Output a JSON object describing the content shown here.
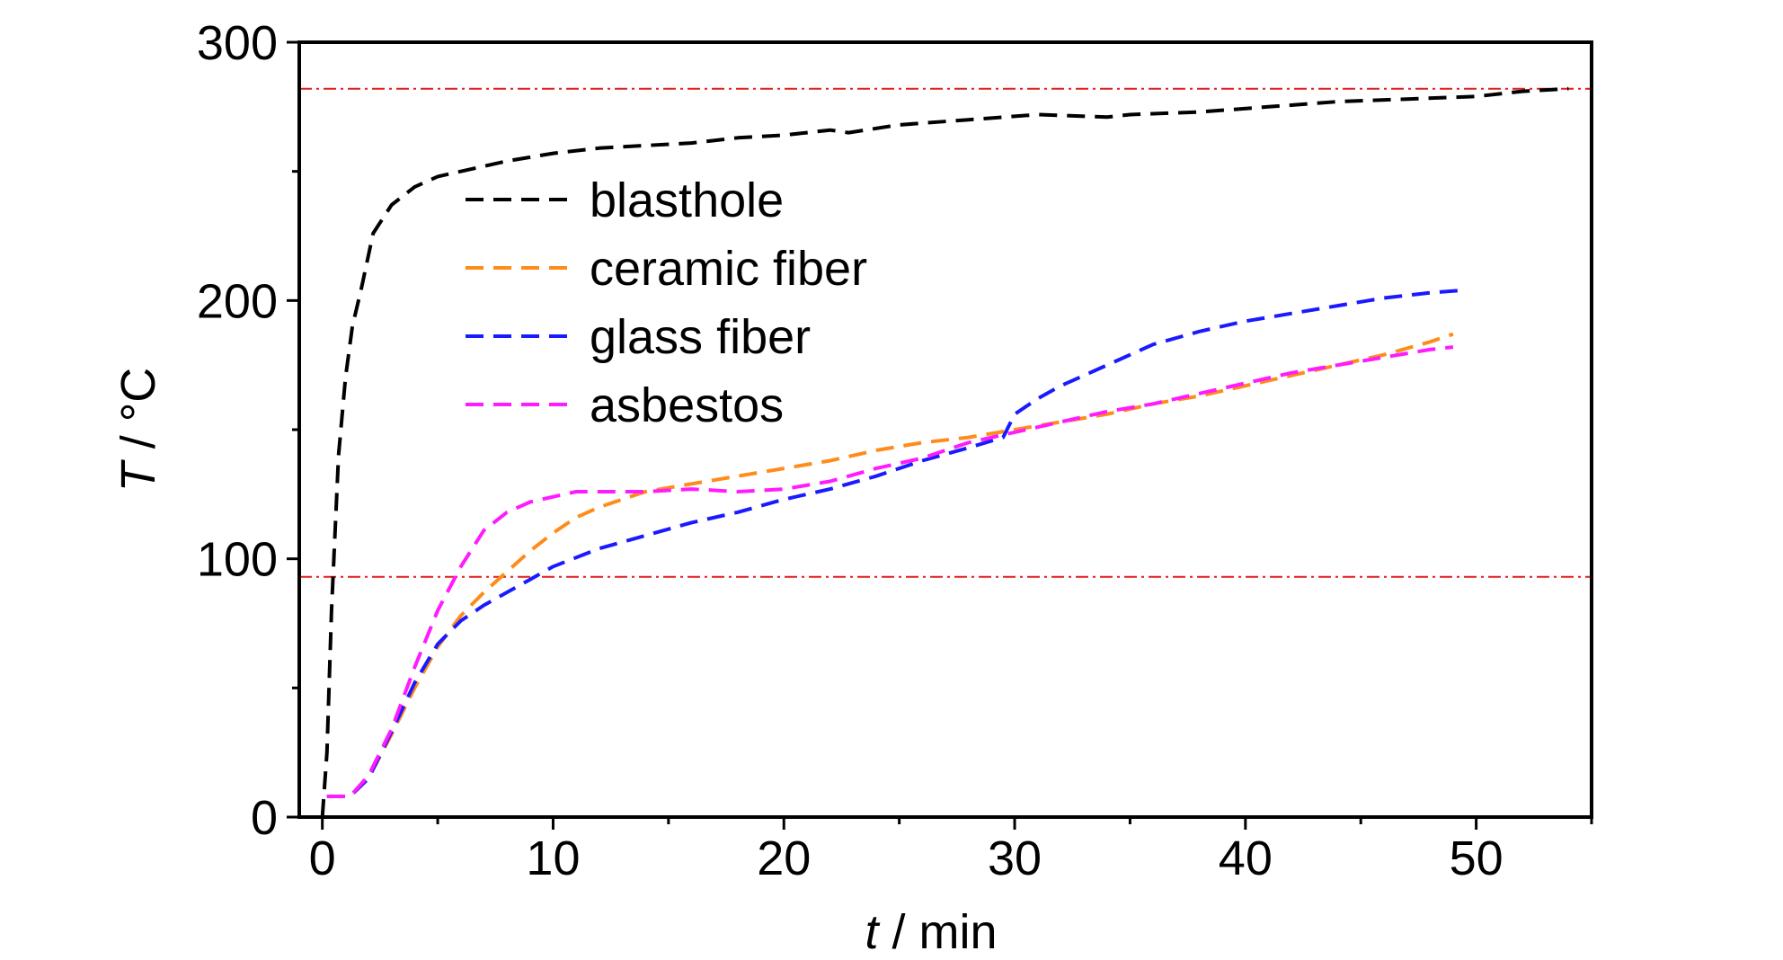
{
  "chart_data": {
    "type": "line",
    "title": "",
    "xlabel": "t",
    "xlabel_unit": " / min",
    "ylabel": "T",
    "ylabel_unit": " / °C",
    "xlim": [
      -1,
      55
    ],
    "ylim": [
      0,
      300
    ],
    "xticks": [
      0,
      10,
      20,
      30,
      40,
      50
    ],
    "yticks": [
      0,
      100,
      200,
      300
    ],
    "x_minor_step": 5,
    "y_minor_step": 50,
    "grid": false,
    "legend_position": "upper-left",
    "reference_lines": [
      {
        "y": 282,
        "color": "#e31a1c",
        "style": "dash-dot"
      },
      {
        "y": 93,
        "color": "#e31a1c",
        "style": "dash-dot"
      }
    ],
    "series": [
      {
        "name": "blasthole",
        "color": "#000000",
        "x": [
          0,
          0.2,
          0.4,
          0.7,
          1.0,
          1.3,
          1.7,
          2.2,
          3.0,
          4.0,
          5.0,
          6.5,
          8.0,
          10,
          12,
          14,
          16,
          18,
          20,
          22,
          22.8,
          25,
          28,
          31,
          34,
          35,
          38,
          41,
          44,
          47,
          50,
          52,
          54
        ],
        "y": [
          0,
          25,
          80,
          140,
          170,
          190,
          205,
          226,
          237,
          244,
          248,
          251,
          254,
          257,
          259,
          260,
          261,
          263,
          264,
          266,
          265,
          268,
          270,
          272,
          271,
          272,
          273,
          275,
          277,
          278,
          279,
          281,
          282
        ]
      },
      {
        "name": "ceramic fiber",
        "color": "#ff8c1a",
        "x": [
          0.2,
          1.2,
          2.0,
          3.0,
          4.0,
          5.0,
          6.0,
          7.0,
          8.0,
          9.0,
          10,
          11,
          12,
          14,
          16,
          18,
          20,
          22,
          24,
          26,
          28,
          30,
          32,
          34,
          36,
          38,
          40,
          42,
          44,
          46,
          48,
          49
        ],
        "y": [
          8,
          8,
          15,
          32,
          50,
          66,
          78,
          87,
          95,
          103,
          110,
          116,
          120,
          126,
          129,
          132,
          135,
          138,
          142,
          145,
          147,
          150,
          153,
          156,
          160,
          163,
          167,
          171,
          175,
          179,
          184,
          187
        ]
      },
      {
        "name": "glass fiber",
        "color": "#1a1aff",
        "x": [
          0.2,
          1.2,
          2.0,
          3.0,
          4.0,
          5.0,
          6.0,
          7.0,
          8.0,
          9.0,
          10,
          12,
          14,
          16,
          18,
          20,
          22,
          24,
          26,
          28,
          29.5,
          30,
          31,
          32,
          34,
          36,
          38,
          40,
          42,
          44,
          46,
          48,
          49.5
        ],
        "y": [
          8,
          8,
          15,
          33,
          52,
          67,
          76,
          82,
          87,
          92,
          97,
          104,
          109,
          114,
          118,
          123,
          127,
          132,
          138,
          143,
          147,
          156,
          162,
          167,
          175,
          183,
          188,
          192,
          195,
          198,
          201,
          203,
          204
        ]
      },
      {
        "name": "asbestos",
        "color": "#ff1aff",
        "x": [
          0.2,
          1.2,
          2.0,
          3.0,
          4.0,
          5.0,
          6.0,
          7.0,
          8.0,
          9.0,
          10,
          11,
          12,
          14,
          16,
          18,
          20,
          22,
          24,
          26,
          28,
          30,
          32,
          34,
          36,
          38,
          40,
          42,
          44,
          46,
          48,
          49
        ],
        "y": [
          8,
          8,
          16,
          34,
          58,
          80,
          97,
          111,
          118,
          122,
          124,
          126,
          126,
          126,
          127,
          126,
          127,
          130,
          135,
          139,
          145,
          149,
          153,
          157,
          160,
          164,
          168,
          172,
          175,
          178,
          181,
          182
        ]
      }
    ]
  }
}
